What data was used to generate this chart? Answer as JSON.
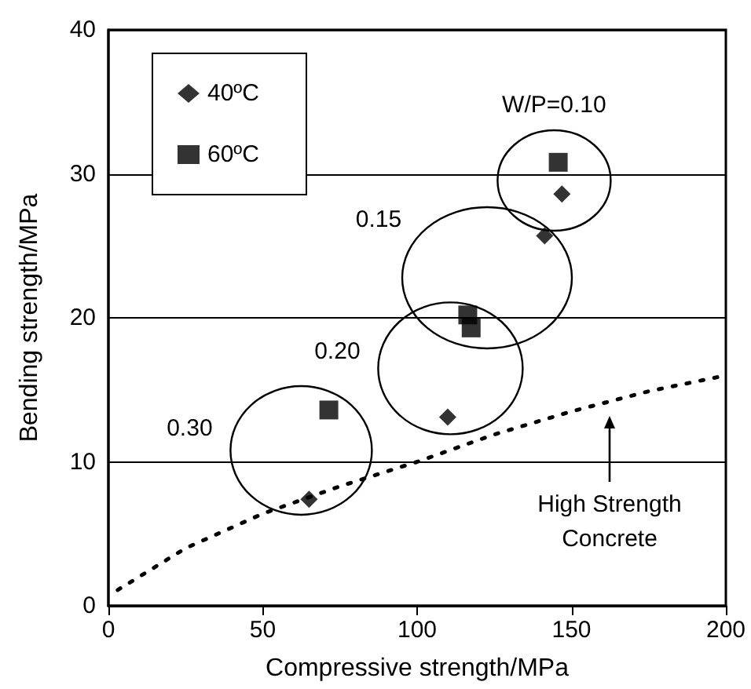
{
  "chart_data": {
    "type": "scatter",
    "xlabel": "Compressive strength/MPa",
    "ylabel": "Bending strength/MPa",
    "xlim": [
      0,
      200
    ],
    "xticks": [
      0,
      50,
      100,
      150,
      200
    ],
    "ylim": [
      0,
      40
    ],
    "yticks": [
      0,
      10,
      20,
      30,
      40
    ],
    "grid": "y",
    "legend": "top left",
    "series": [
      {
        "name": "40ºC",
        "color": "#000000",
        "marker": "diamond",
        "x": [
          146.9,
          141.3,
          109.9,
          65
        ],
        "values": [
          28.6,
          25.7,
          13.1,
          7.4
        ]
      },
      {
        "name": "60ºC",
        "color": "#000000",
        "marker": "square",
        "x": [
          145.7,
          116.4,
          117.5,
          71.4
        ],
        "values": [
          30.8,
          20.2,
          19.3,
          13.6
        ]
      },
      {
        "type": "line",
        "color": "#000000",
        "marker": "none",
        "line_style": "dotted",
        "x": [
          3,
          25,
          50,
          75,
          100,
          125,
          150,
          175,
          200
        ],
        "values": [
          1.1,
          4.0,
          6.4,
          8.3,
          10.0,
          11.9,
          13.5,
          14.9,
          16.0
        ]
      }
    ],
    "annotations": [
      "W/P=0.10",
      "0.15",
      "0.20",
      "0.30",
      "High Strength Concrete"
    ]
  }
}
